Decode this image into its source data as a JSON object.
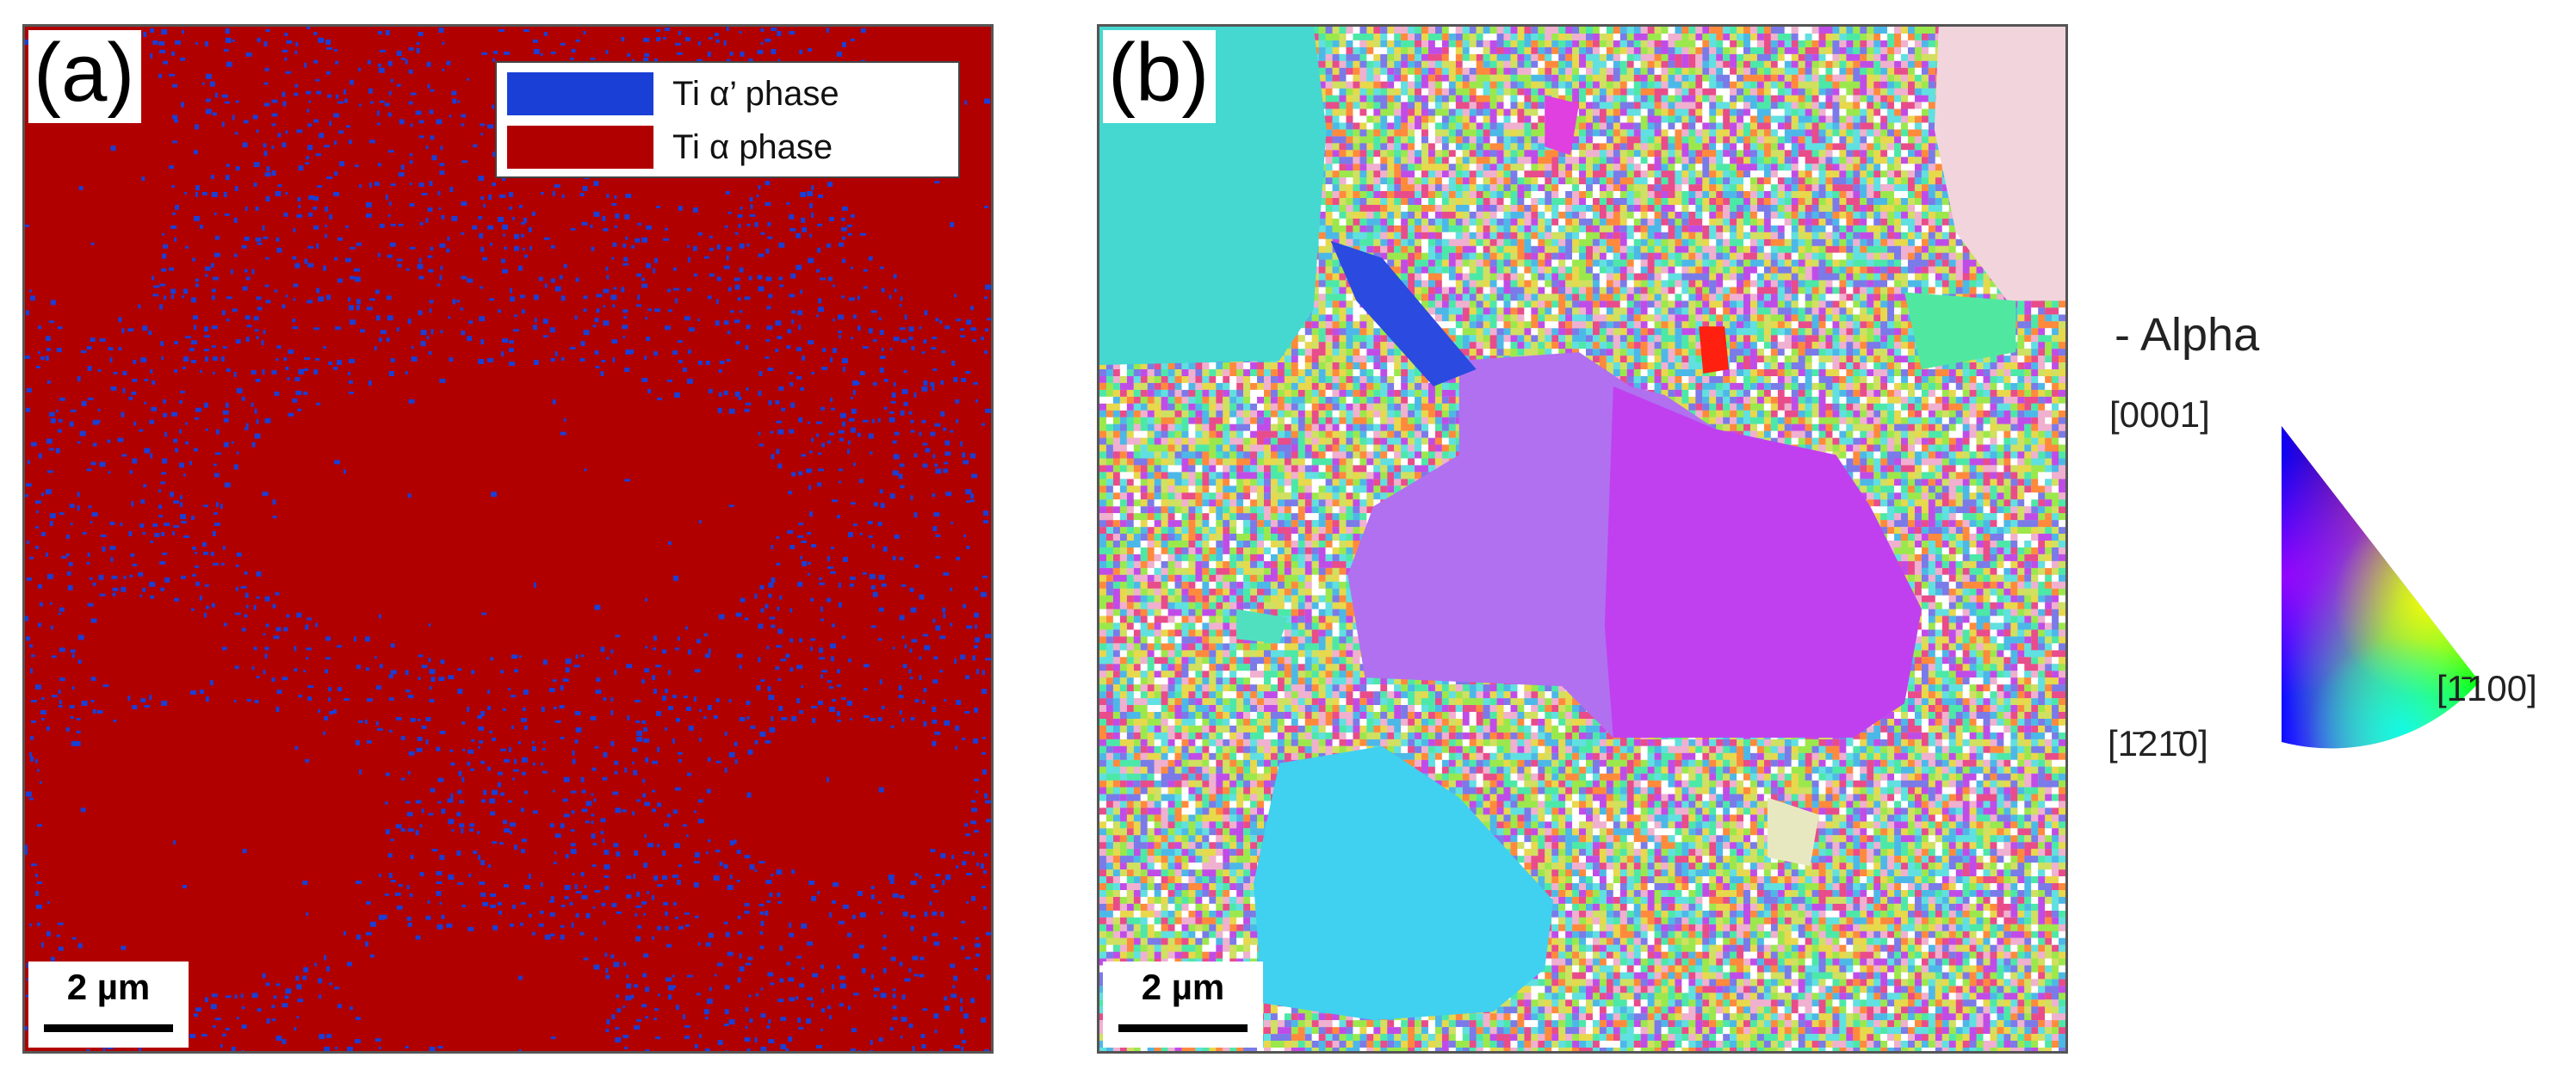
{
  "panel_a": {
    "label": "(a)",
    "legend": [
      {
        "label": "Ti α’ phase",
        "color": "#1a3fd6"
      },
      {
        "label": "Ti α phase",
        "color": "#b10000"
      }
    ],
    "scale_bar": "2 µm"
  },
  "panel_b": {
    "label": "(b)",
    "scale_bar": "2 µm"
  },
  "ipf_key": {
    "title": "- Alpha",
    "pole_top": "[0001]",
    "pole_left": "[1̄21̄0]",
    "pole_right": "[1̄100]"
  },
  "colors": {
    "alpha_red": "#b10000",
    "alpha_prime_blue": "#1a3fd6"
  }
}
